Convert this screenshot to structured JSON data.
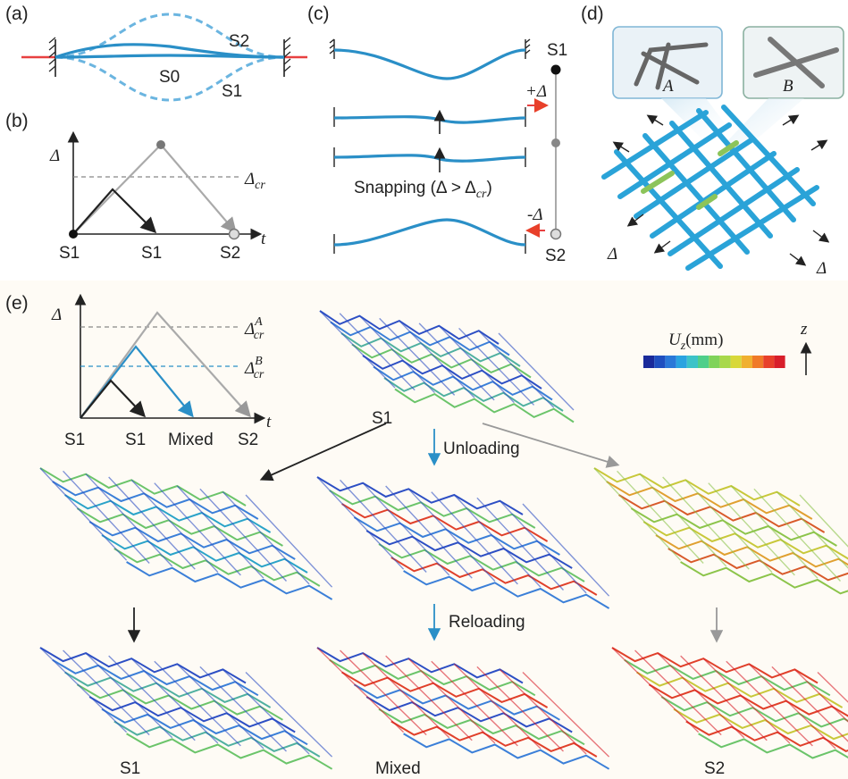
{
  "panels": {
    "a": "(a)",
    "b": "(b)",
    "c": "(c)",
    "d": "(d)",
    "e": "(e)"
  },
  "panel_a": {
    "s0": "S0",
    "s1": "S1",
    "s2": "S2"
  },
  "panel_b": {
    "delta": "Δ",
    "t": "t",
    "delta_cr": "Δ",
    "cr": "cr",
    "x_s1_left": "S1",
    "x_s1_mid": "S1",
    "x_s2": "S2"
  },
  "panel_c": {
    "s1": "S1",
    "s2": "S2",
    "plus_delta": "+Δ",
    "minus_delta": "-Δ",
    "snapping": "Snapping (Δ > Δ",
    "snapping_sub": "cr",
    "snapping_close": ")"
  },
  "panel_d": {
    "inset_a": "A",
    "inset_b": "B",
    "delta_left": "Δ",
    "delta_right": "Δ"
  },
  "panel_e": {
    "delta": "Δ",
    "t": "t",
    "delta_a": "Δ",
    "delta_a_sup": "A",
    "delta_a_sub": "cr",
    "delta_b": "Δ",
    "delta_b_sup": "B",
    "delta_b_sub": "cr",
    "x_s1_left": "S1",
    "x_s1_mid": "S1",
    "x_mixed": "Mixed",
    "x_s2": "S2",
    "colorbar_label": "U",
    "colorbar_sub": "z",
    "colorbar_unit": "(mm)",
    "z_axis": "z",
    "colorbar_colors": [
      "#1a2a9a",
      "#1f4fbf",
      "#2a78d8",
      "#2aa3e0",
      "#3cc3c8",
      "#4fcf8a",
      "#7fd35a",
      "#a8d84a",
      "#d8d83a",
      "#f0b030",
      "#f07a28",
      "#e8402a",
      "#d81e2a"
    ],
    "top_label": "S1",
    "unloading": "Unloading",
    "reloading": "Reloading",
    "bottom_s1": "S1",
    "bottom_mixed": "Mixed",
    "bottom_s2": "S2"
  }
}
